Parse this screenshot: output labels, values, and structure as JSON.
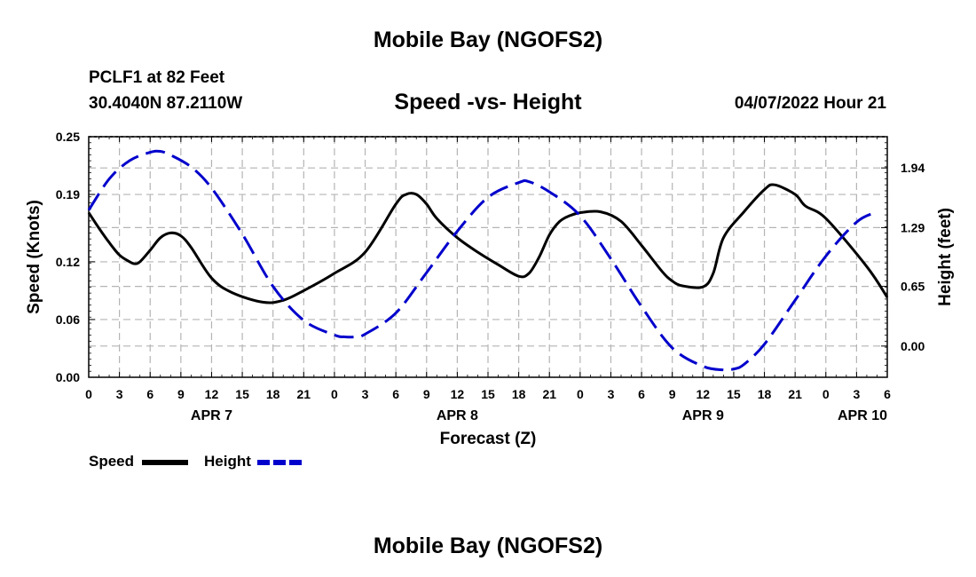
{
  "page": {
    "title": "Mobile Bay (NGOFS2)",
    "station": "PCLF1 at 82 Feet",
    "coords": "30.4040N  87.2110W",
    "subtitle": "Speed -vs- Height",
    "datetime": "04/07/2022 Hour 21",
    "footer_title": "Mobile Bay (NGOFS2)"
  },
  "legend": {
    "speed_label": "Speed",
    "height_label": "Height"
  },
  "colors": {
    "speed": "#000000",
    "height": "#0000cc",
    "grid": "#b4b4b4"
  },
  "chart_data": {
    "type": "line",
    "title": "Speed -vs- Height",
    "xlabel": "Forecast (Z)",
    "ylabel": "Speed (Knots)",
    "y2label": "Height (feet)",
    "xlim": [
      0,
      78
    ],
    "ylim": [
      0,
      0.25
    ],
    "y2lim": [
      -0.34,
      2.28
    ],
    "x_ticks": [
      0,
      3,
      6,
      9,
      12,
      15,
      18,
      21,
      24,
      27,
      30,
      33,
      36,
      39,
      42,
      45,
      48,
      51,
      54,
      57,
      60,
      63,
      66,
      69,
      72,
      75,
      78
    ],
    "x_tick_labels": [
      "0",
      "3",
      "6",
      "9",
      "12",
      "15",
      "18",
      "21",
      "0",
      "3",
      "6",
      "9",
      "12",
      "15",
      "18",
      "21",
      "0",
      "3",
      "6",
      "9",
      "12",
      "15",
      "18",
      "21",
      "0",
      "3",
      "6"
    ],
    "date_labels": [
      {
        "x": 12,
        "label": "APR 7"
      },
      {
        "x": 36,
        "label": "APR 8"
      },
      {
        "x": 60,
        "label": "APR 9"
      },
      {
        "x": 78,
        "label": "APR 10"
      }
    ],
    "y_ticks": [
      0.0,
      0.06,
      0.12,
      0.19,
      0.25
    ],
    "y_tick_labels": [
      "0.00",
      "0.06",
      "0.12",
      "0.19",
      "0.25"
    ],
    "y2_ticks": [
      0.0,
      0.65,
      1.29,
      1.94
    ],
    "y2_tick_labels": [
      "0.00",
      "0.65",
      "1.29",
      "1.94"
    ],
    "series": [
      {
        "name": "Speed",
        "axis": "left",
        "style": "solid",
        "x": [
          0,
          1,
          2,
          3,
          4,
          4.5,
          5,
          6,
          7,
          8,
          9,
          10,
          12,
          14,
          17,
          19,
          21,
          24,
          27,
          30,
          31,
          32,
          33,
          34,
          36,
          38,
          40,
          42,
          43,
          44,
          45,
          46,
          47,
          48,
          50,
          52,
          54,
          56,
          57,
          58,
          60,
          61,
          62,
          64,
          66,
          67,
          69,
          70,
          72,
          76,
          78
        ],
        "values": [
          0.171,
          0.155,
          0.14,
          0.127,
          0.12,
          0.118,
          0.12,
          0.132,
          0.145,
          0.15,
          0.147,
          0.135,
          0.103,
          0.088,
          0.078,
          0.08,
          0.09,
          0.108,
          0.13,
          0.18,
          0.19,
          0.19,
          0.18,
          0.165,
          0.145,
          0.13,
          0.117,
          0.105,
          0.108,
          0.125,
          0.148,
          0.162,
          0.168,
          0.171,
          0.172,
          0.162,
          0.137,
          0.11,
          0.1,
          0.095,
          0.094,
          0.108,
          0.145,
          0.172,
          0.195,
          0.2,
          0.19,
          0.178,
          0.165,
          0.115,
          0.083
        ]
      },
      {
        "name": "Height",
        "axis": "right",
        "style": "dashed",
        "x": [
          0,
          2,
          4,
          6,
          7,
          8,
          10,
          12,
          15,
          18,
          21,
          24,
          25,
          26,
          27,
          30,
          33,
          36,
          39,
          42,
          43,
          45,
          48,
          51,
          54,
          57,
          60,
          62,
          63,
          64,
          66,
          69,
          72,
          75,
          77
        ],
        "values": [
          1.48,
          1.82,
          2.02,
          2.11,
          2.12,
          2.08,
          1.95,
          1.72,
          1.22,
          0.65,
          0.28,
          0.12,
          0.1,
          0.1,
          0.13,
          0.36,
          0.8,
          1.25,
          1.62,
          1.78,
          1.79,
          1.68,
          1.42,
          0.95,
          0.43,
          -0.02,
          -0.22,
          -0.26,
          -0.25,
          -0.2,
          0.02,
          0.5,
          0.98,
          1.35,
          1.46
        ]
      }
    ]
  }
}
